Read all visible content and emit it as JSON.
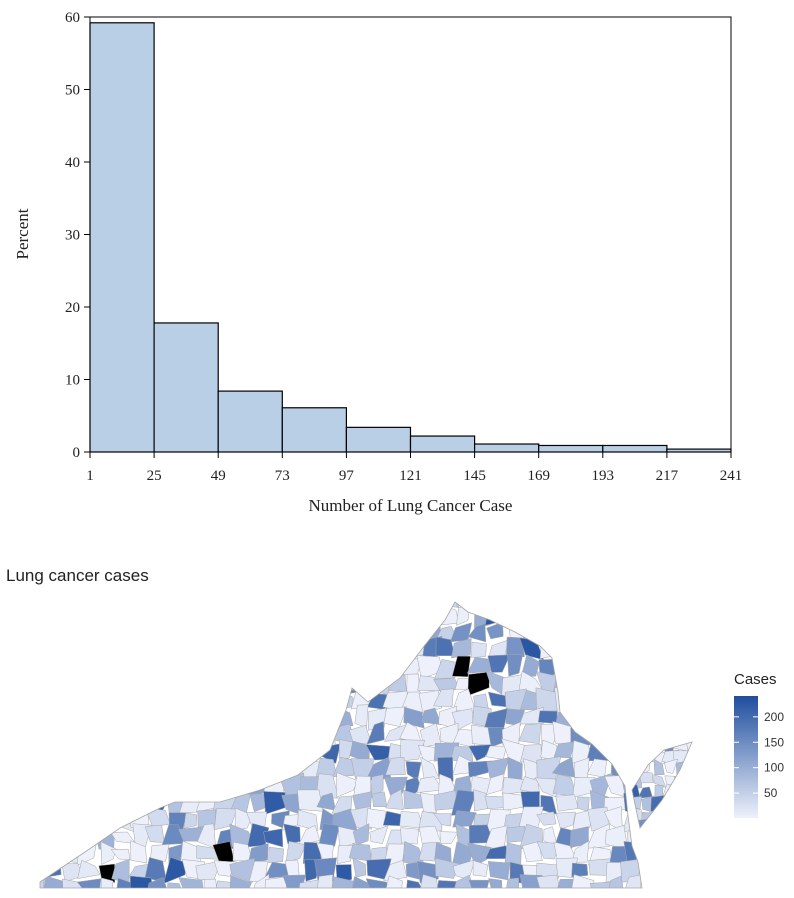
{
  "chart_data": [
    {
      "type": "bar",
      "subtype": "histogram",
      "xlabel": "Number of Lung Cancer Case",
      "ylabel": "Percent",
      "bin_edges": [
        1,
        25,
        49,
        73,
        97,
        121,
        145,
        169,
        193,
        217,
        241
      ],
      "x_tick_labels": [
        "1",
        "25",
        "49",
        "73",
        "97",
        "121",
        "145",
        "169",
        "193",
        "217",
        "241"
      ],
      "values": [
        59.2,
        17.8,
        8.4,
        6.1,
        3.4,
        2.2,
        1.1,
        0.9,
        0.9,
        0.4
      ],
      "ylim": [
        0,
        60
      ],
      "y_ticks": [
        0,
        10,
        20,
        30,
        40,
        50,
        60
      ],
      "y_tick_labels": [
        "0",
        "10",
        "20",
        "30",
        "40",
        "50",
        "60"
      ],
      "bar_color": "#b9cfe6",
      "edge_color": "#000000",
      "grid": false
    },
    {
      "type": "choropleth",
      "title": "Lung cancer cases",
      "region": "Virginia",
      "legend_title": "Cases",
      "legend_ticks": [
        50,
        100,
        150,
        200
      ],
      "legend_tick_labels": [
        "50",
        "100",
        "150",
        "200"
      ],
      "legend_range": [
        1,
        241
      ],
      "color_low": "#eef1fb",
      "color_high": "#1f4e9e",
      "missing_color": "#000000",
      "border_color": "#a6a6a6",
      "legend_position": "right"
    }
  ]
}
